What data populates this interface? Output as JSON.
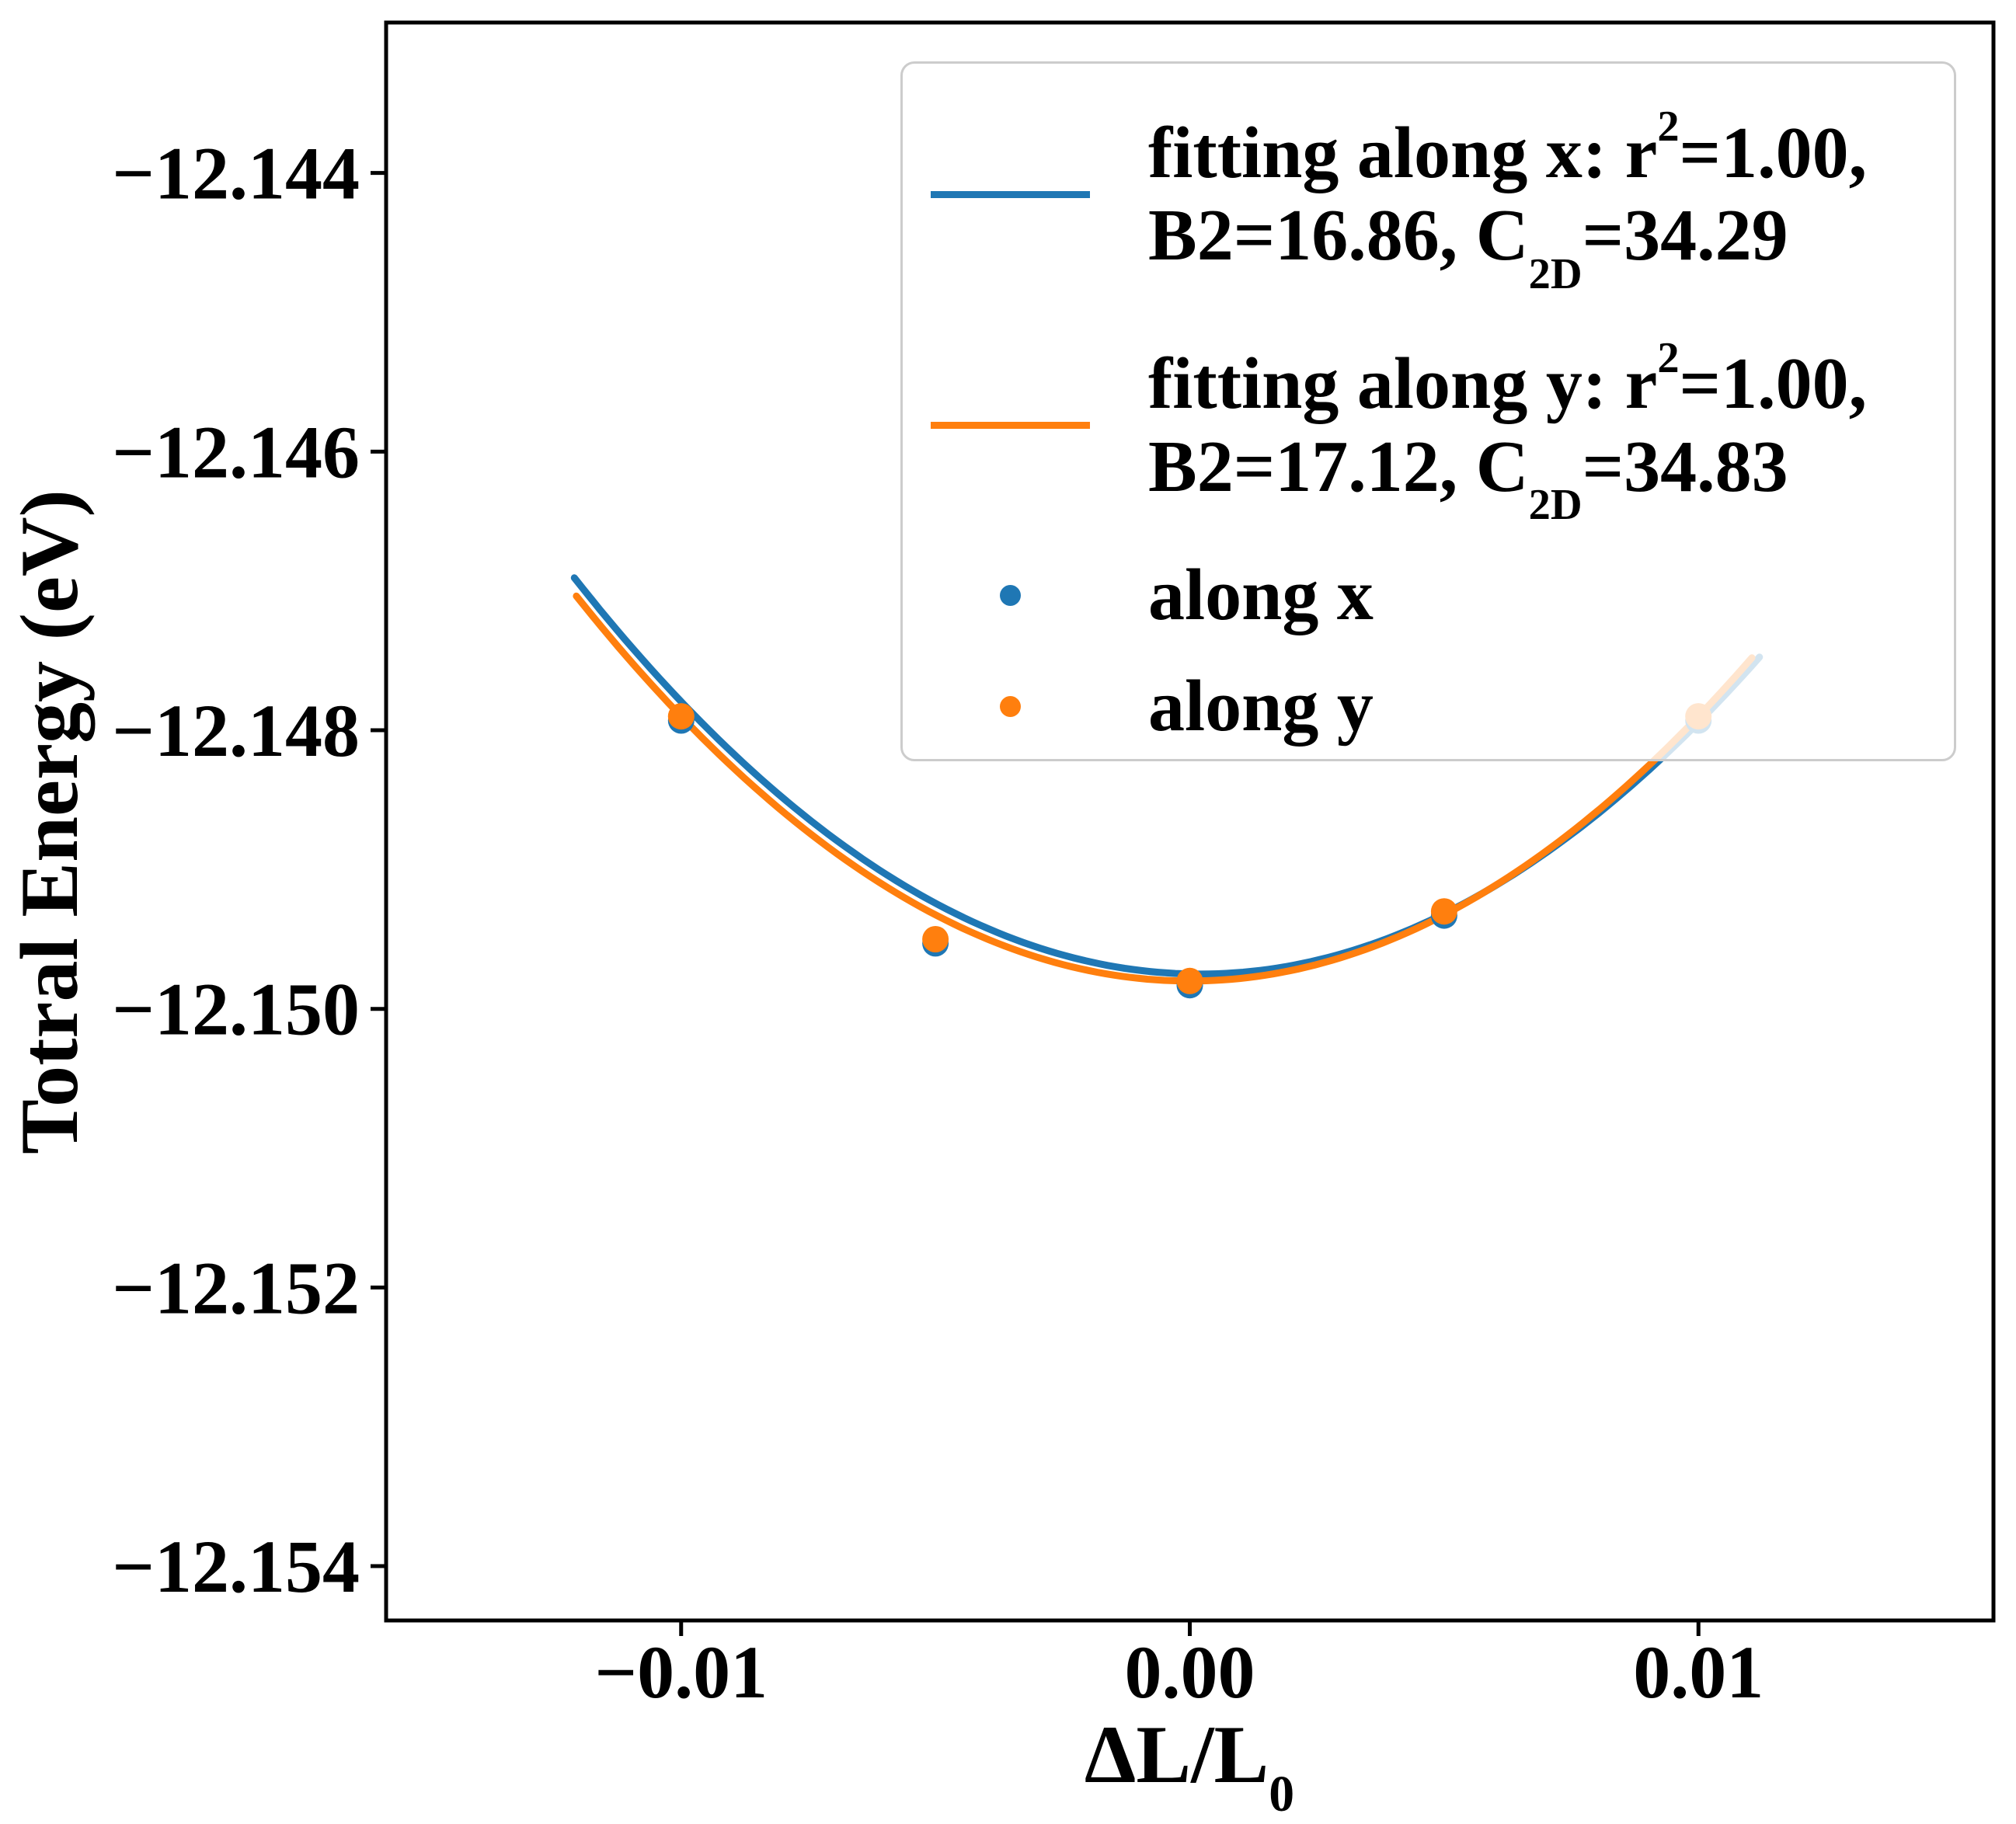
{
  "figure": {
    "background": "#ffffff"
  },
  "colors": {
    "along_x": "#1f77b4",
    "along_y": "#ff7f0e",
    "axis": "#000000",
    "legend_border": "#cccccc"
  },
  "axis_labels": {
    "x_pre": "ΔL/L",
    "x_sub": "0",
    "y": "Totral Energy (eV)"
  },
  "legend": {
    "entries": [
      {
        "handle": "line",
        "color": "#1f77b4",
        "line1": {
          "pre": "fitting along x: r",
          "sup": "2",
          "post": "=1.00,"
        },
        "line2": {
          "pre": "B2=16.86, C",
          "sub": "2D",
          "post": "=34.29"
        }
      },
      {
        "handle": "line",
        "color": "#ff7f0e",
        "line1": {
          "pre": "fitting along y: r",
          "sup": "2",
          "post": "=1.00,"
        },
        "line2": {
          "pre": "B2=17.12, C",
          "sub": "2D",
          "post": "=34.83"
        }
      },
      {
        "handle": "dot",
        "color": "#1f77b4",
        "label": "along x"
      },
      {
        "handle": "dot",
        "color": "#ff7f0e",
        "label": "along y"
      }
    ]
  },
  "chart_data": {
    "type": "scatter",
    "title": "",
    "xlabel": "ΔL/L0",
    "ylabel": "Totral Energy (eV)",
    "xlim": [
      -0.0158,
      0.0158
    ],
    "ylim": [
      -12.15439,
      -12.14292
    ],
    "grid": false,
    "legend_position": "upper right",
    "x_ticks": [
      {
        "value": -0.01,
        "label": "−0.01"
      },
      {
        "value": 0.0,
        "label": "0.00"
      },
      {
        "value": 0.01,
        "label": "0.01"
      }
    ],
    "y_ticks": [
      {
        "value": -12.144,
        "label": "−12.144"
      },
      {
        "value": -12.146,
        "label": "−12.146"
      },
      {
        "value": -12.148,
        "label": "−12.148"
      },
      {
        "value": -12.15,
        "label": "−12.150"
      },
      {
        "value": -12.152,
        "label": "−12.152"
      },
      {
        "value": -12.154,
        "label": "−12.154"
      }
    ],
    "series": [
      {
        "name": "fitting along x",
        "kind": "fit",
        "color": "#1f77b4",
        "r2": 1.0,
        "B2": 16.86,
        "C2D": 34.29,
        "vertex_x": 0.0002,
        "vertex_E": -12.14975,
        "curvature_a": 18.8,
        "x_range": [
          -0.0121,
          0.0112
        ],
        "line_width": 9
      },
      {
        "name": "fitting along y",
        "kind": "fit",
        "color": "#ff7f0e",
        "r2": 1.0,
        "B2": 17.12,
        "C2D": 34.83,
        "vertex_x": 0.0,
        "vertex_E": -12.1498,
        "curvature_a": 19.0,
        "x_range": [
          -0.01206,
          0.01105
        ],
        "line_width": 9
      },
      {
        "name": "along x",
        "kind": "scatter",
        "color": "#1f77b4",
        "marker_radius": 17,
        "x": [
          -0.01,
          -0.005,
          0.0,
          0.005,
          0.01
        ],
        "y": [
          -12.14793,
          -12.14953,
          -12.14983,
          -12.14933,
          -12.14793
        ]
      },
      {
        "name": "along y",
        "kind": "scatter",
        "color": "#ff7f0e",
        "marker_radius": 17,
        "x": [
          -0.01,
          -0.005,
          0.0,
          0.005,
          0.01
        ],
        "y": [
          -12.1479,
          -12.1495,
          -12.1498,
          -12.1493,
          -12.1479
        ]
      }
    ]
  }
}
